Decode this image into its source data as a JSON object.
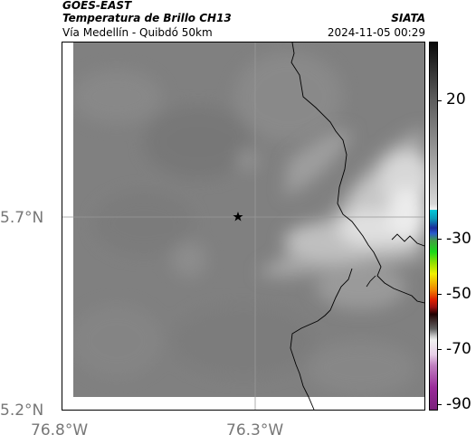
{
  "header": {
    "satellite": "GOES-EAST",
    "product": "Temperatura de Brillo CH13",
    "region": "Vía Medellín - Quibdó 50km",
    "organization": "SIATA",
    "datetime": "2024-11-05 00:29"
  },
  "map": {
    "lat_labels": [
      "5.7°N",
      "5.2°N"
    ],
    "lon_labels": [
      "76.8°W",
      "76.3°W"
    ],
    "marker": "star-icon"
  },
  "colorbar": {
    "tick_labels": [
      "20",
      "-30",
      "-50",
      "-70",
      "-90"
    ]
  },
  "colors": {
    "background_gray": "#808080",
    "cold_cloud": "#dedede",
    "border": "#000000"
  }
}
